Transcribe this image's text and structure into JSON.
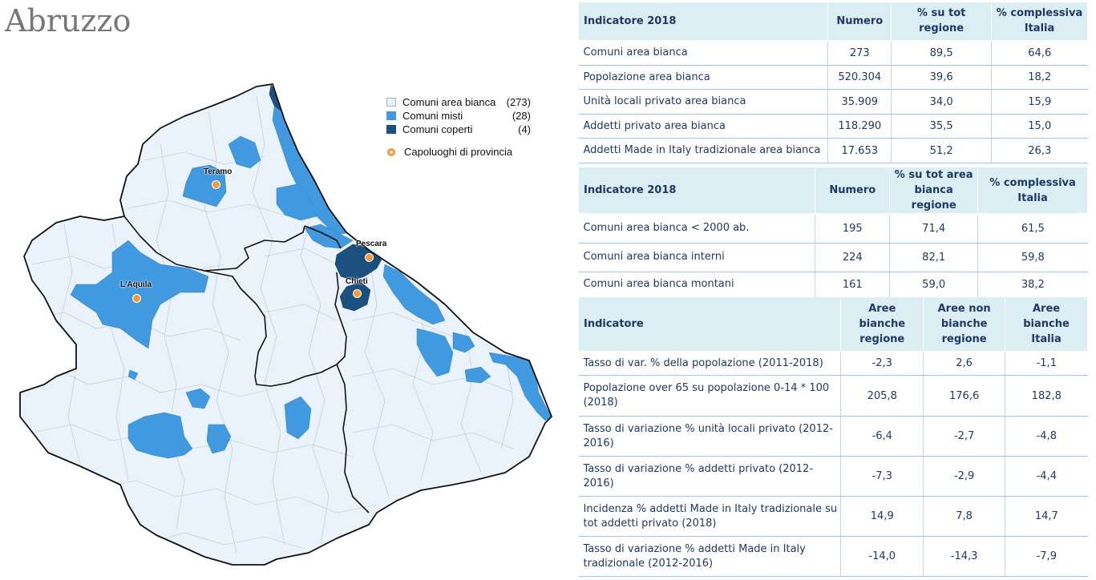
{
  "title": "Abruzzo",
  "legend": {
    "items": [
      {
        "label": "Comuni area bianca",
        "count": "(273)",
        "color": "#eaf3fb"
      },
      {
        "label": "Comuni misti",
        "count": "(28)",
        "color": "#4199e0"
      },
      {
        "label": "Comuni coperti",
        "count": "(4)",
        "color": "#1a4f80"
      }
    ],
    "capoluoghi": "Capoluoghi di provincia"
  },
  "cities": [
    {
      "name": "Teramo"
    },
    {
      "name": "Pescara"
    },
    {
      "name": "L'Aquila"
    },
    {
      "name": "Chieti"
    }
  ],
  "table1": {
    "headers": [
      "Indicatore 2018",
      "Numero",
      "% su tot regione",
      "% complessiva Italia"
    ],
    "rows": [
      [
        "Comuni area bianca",
        "273",
        "89,5",
        "64,6"
      ],
      [
        "Popolazione area bianca",
        "520.304",
        "39,6",
        "18,2"
      ],
      [
        "Unità locali privato area bianca",
        "35.909",
        "34,0",
        "15,9"
      ],
      [
        "Addetti privato area bianca",
        "118.290",
        "35,5",
        "15,0"
      ],
      [
        "Addetti Made in Italy tradizionale area bianca",
        "17.653",
        "51,2",
        "26,3"
      ]
    ]
  },
  "table2": {
    "headers": [
      "Indicatore 2018",
      "Numero",
      "% su tot area bianca regione",
      "% complessiva Italia"
    ],
    "rows": [
      [
        "Comuni area bianca < 2000 ab.",
        "195",
        "71,4",
        "61,5"
      ],
      [
        "Comuni area bianca interni",
        "224",
        "82,1",
        "59,8"
      ],
      [
        "Comuni area bianca montani",
        "161",
        "59,0",
        "38,2"
      ]
    ]
  },
  "table3": {
    "headers": [
      "Indicatore",
      "Aree bianche regione",
      "Aree non bianche regione",
      "Aree bianche Italia"
    ],
    "rows": [
      [
        "Tasso di var. % della popolazione (2011-2018)",
        "-2,3",
        "2,6",
        "-1,1"
      ],
      [
        "Popolazione over 65 su popolazione 0-14 * 100 (2018)",
        "205,8",
        "176,6",
        "182,8"
      ],
      [
        "Tasso di variazione % unità locali privato (2012-2016)",
        "-6,4",
        "-2,7",
        "-4,8"
      ],
      [
        "Tasso di variazione % addetti privato (2012-2016)",
        "-7,3",
        "-2,9",
        "-4,4"
      ],
      [
        "Incidenza % addetti Made in Italy tradizionale su tot addetti privato (2018)",
        "14,9",
        "7,8",
        "14,7"
      ],
      [
        "Tasso di variazione % addetti Made in Italy tradizionale (2012-2016)",
        "-14,0",
        "-14,3",
        "-7,9"
      ]
    ]
  }
}
